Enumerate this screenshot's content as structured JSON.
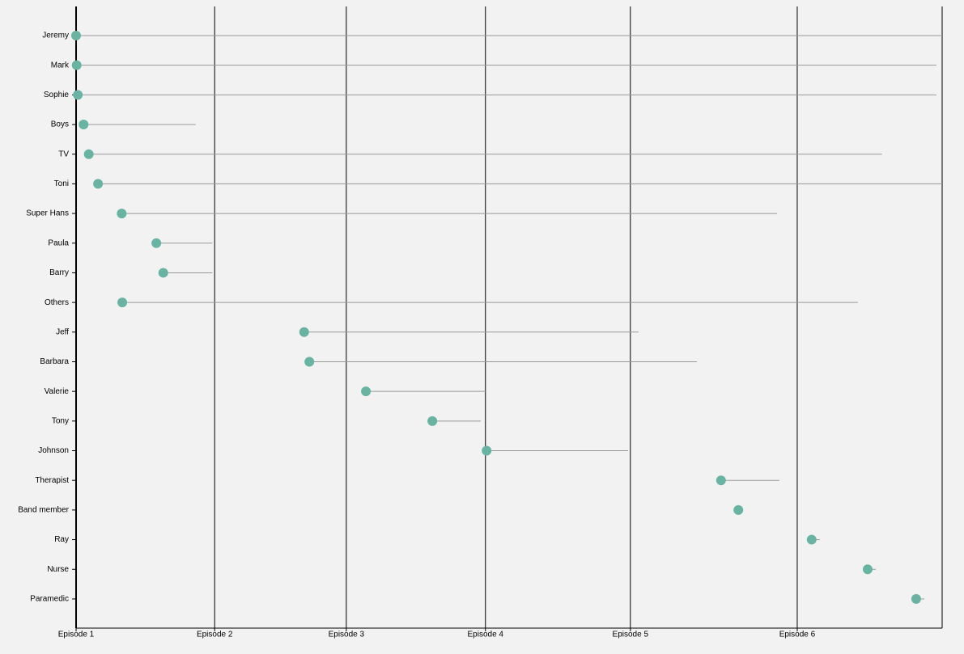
{
  "chart_data": {
    "type": "dumbbell",
    "categories": [
      "Jeremy",
      "Mark",
      "Sophie",
      "Boys",
      "TV",
      "Toni",
      "Super Hans",
      "Paula",
      "Barry",
      "Others",
      "Jeff",
      "Barbara",
      "Valerie",
      "Tony",
      "Johnson",
      "Therapist",
      "Band member",
      "Ray",
      "Nurse",
      "Paramedic"
    ],
    "start": [
      0,
      0.1,
      0.3,
      1.3,
      2.2,
      3.8,
      7.9,
      13.9,
      15.1,
      8.0,
      39.5,
      40.4,
      50.2,
      61.7,
      71.1,
      111.7,
      114.7,
      127.4,
      137.1,
      145.5
    ],
    "end": [
      150,
      149.0,
      149.0,
      20.7,
      139.6,
      150,
      121.4,
      23.6,
      23.6,
      135.4,
      97.4,
      107.5,
      70.9,
      70.1,
      95.6,
      121.8,
      114.7,
      128.8,
      138.5,
      146.9
    ],
    "color": "#69b3a2",
    "line_color": "#999999",
    "xlim": [
      0,
      150
    ],
    "xticks": [
      {
        "value": 0,
        "label": "Episode 1"
      },
      {
        "value": 24,
        "label": "Episode 2"
      },
      {
        "value": 46.8,
        "label": "Episode 3"
      },
      {
        "value": 70.9,
        "label": "Episode 4"
      },
      {
        "value": 96,
        "label": "Episode 5"
      },
      {
        "value": 124.9,
        "label": "Episode 6"
      }
    ],
    "grid": true
  }
}
